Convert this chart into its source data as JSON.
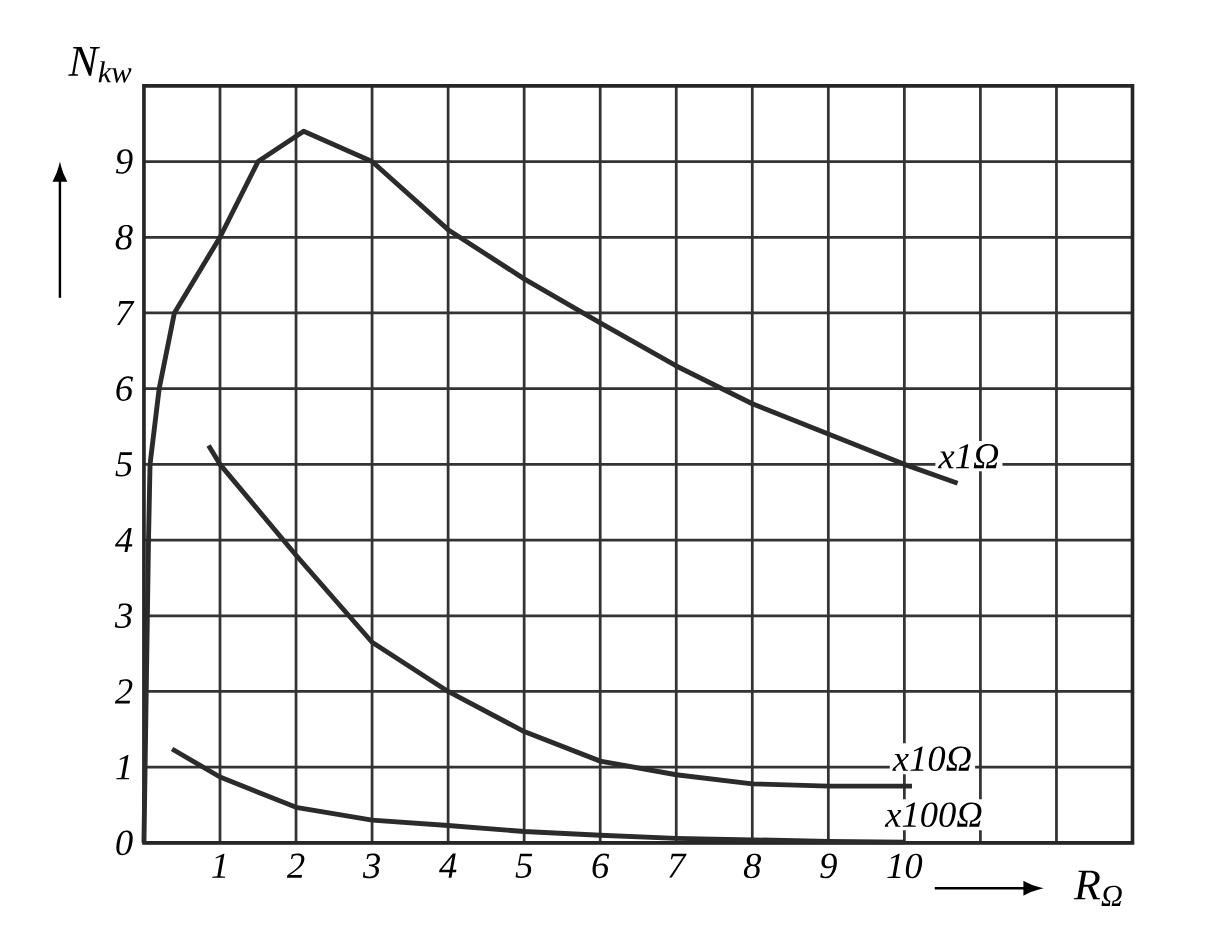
{
  "chart_data": {
    "type": "line",
    "xlabel": "R$_{Ω}$",
    "ylabel": "N$_{kw}$",
    "xlim": [
      0,
      13
    ],
    "ylim": [
      0,
      10
    ],
    "xticks": [
      1,
      2,
      3,
      4,
      5,
      6,
      7,
      8,
      9,
      10,
      {
        "value": 11,
        "label": null
      },
      {
        "value": 12,
        "label": null
      }
    ],
    "yticks": [
      0,
      1,
      2,
      3,
      4,
      5,
      6,
      7,
      8,
      9
    ],
    "grid": true,
    "legend": false,
    "marker": "none",
    "line_style": "solid",
    "series": [
      {
        "name": "x1Ω",
        "color": "#2b2b2b",
        "x": [
          0,
          0.03,
          0.06,
          0.08,
          0.2,
          0.4,
          1,
          1.5,
          2.1,
          3,
          4,
          5,
          6,
          7,
          8,
          9,
          10,
          10.7
        ],
        "values": [
          0,
          2,
          4,
          5,
          6,
          7,
          8,
          9,
          9.4,
          9,
          8.1,
          7.45,
          6.87,
          6.3,
          5.8,
          5.4,
          5.0,
          4.75
        ]
      },
      {
        "name": "x10Ω",
        "color": "#2b2b2b",
        "x": [
          0.85,
          1,
          2,
          3,
          4,
          5,
          6,
          7,
          8,
          9,
          10.1
        ],
        "values": [
          5.25,
          5.0,
          3.8,
          2.65,
          2.0,
          1.47,
          1.08,
          0.9,
          0.78,
          0.75,
          0.75
        ]
      },
      {
        "name": "x100Ω",
        "color": "#2b2b2b",
        "x": [
          0.37,
          1,
          2,
          3,
          4,
          5,
          6,
          7,
          8,
          9,
          10
        ],
        "values": [
          1.24,
          0.87,
          0.47,
          0.3,
          0.23,
          0.15,
          0.1,
          0.06,
          0.04,
          0.02,
          0.01
        ]
      }
    ]
  }
}
